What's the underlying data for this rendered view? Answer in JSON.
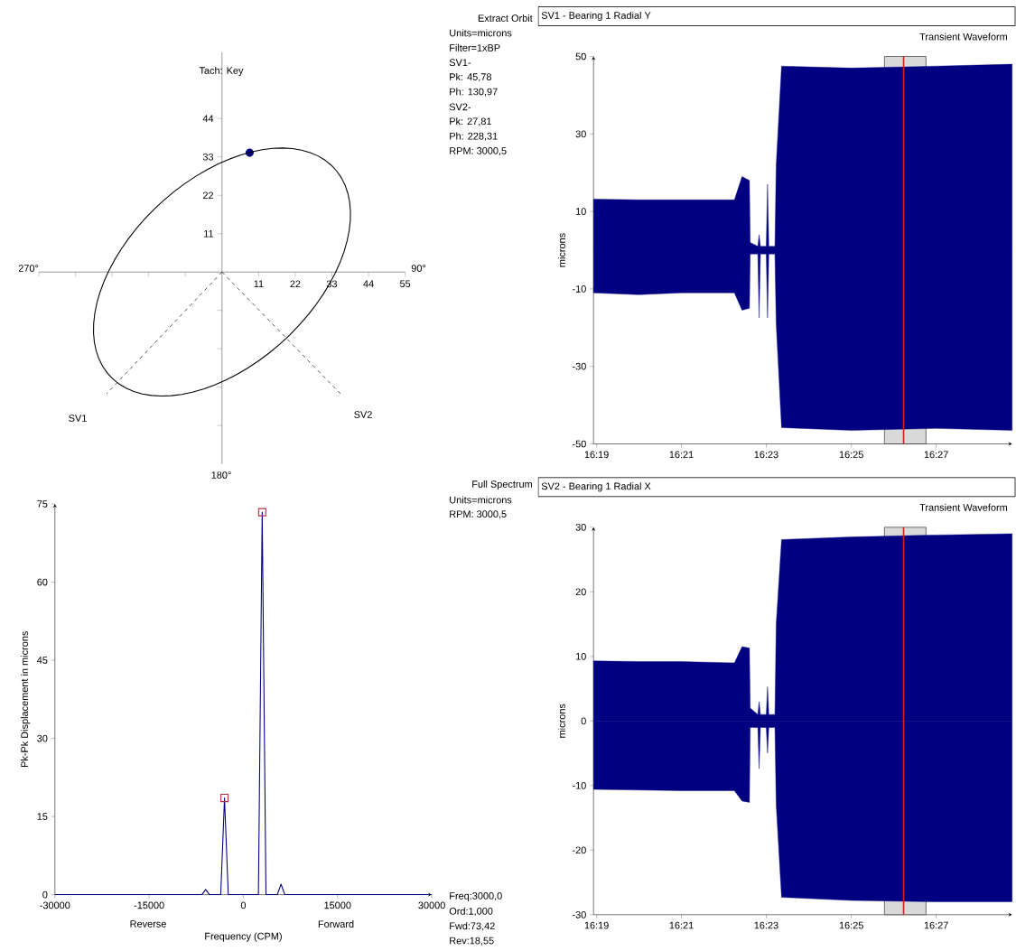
{
  "chart_data": [
    {
      "type": "scatter",
      "xlim": [
        -55,
        55
      ],
      "ylim": [
        -55,
        63
      ],
      "xticks": [
        {
          "value": -55,
          "label": null
        },
        {
          "value": -44,
          "label": null
        },
        {
          "value": -33,
          "label": null
        },
        {
          "value": -22,
          "label": null
        },
        {
          "value": -11,
          "label": null
        },
        11,
        22,
        33,
        44,
        55
      ],
      "yticks": [
        {
          "value": -44,
          "label": null
        },
        {
          "value": -33,
          "label": null
        },
        {
          "value": -22,
          "label": null
        },
        {
          "value": -11,
          "label": null
        },
        11,
        22,
        33,
        44
      ],
      "series": [
        {
          "marker": "circle",
          "color": "#000080",
          "x": [
            8.3
          ],
          "values": [
            34.2
          ]
        }
      ],
      "annotations": [
        "Extract Orbit",
        "Units=microns",
        "Filter=1xBP",
        "SV1-",
        "Pk: 45,78",
        "Ph: 130,97",
        "SV2-",
        "Pk: 27,81",
        "Ph: 228,31",
        "RPM: 3000,5",
        "Tach: Key",
        "270°",
        "90°",
        "180°",
        "SV1",
        "SV2"
      ]
    },
    {
      "type": "area",
      "title": "SV1 - Bearing 1 Radial Y",
      "subtitle": "Transient Waveform",
      "ylabel": "microns",
      "xlim": [
        16.3155,
        16.4798
      ],
      "ylim": [
        -50,
        50
      ],
      "xticks": [
        {
          "value": 16.3167,
          "label": "16:19"
        },
        {
          "value": 16.35,
          "label": "16:21"
        },
        {
          "value": 16.3833,
          "label": "16:23"
        },
        {
          "value": 16.4167,
          "label": "16:25"
        },
        {
          "value": 16.45,
          "label": "16:27"
        }
      ],
      "yticks": [
        -50,
        -30,
        -10,
        10,
        30,
        50
      ],
      "x": [
        16.3155,
        16.3333,
        16.35,
        16.3708,
        16.3738,
        16.3767,
        16.377,
        16.38,
        16.3805,
        16.381,
        16.3833,
        16.3838,
        16.3843,
        16.3867,
        16.3872,
        16.3893,
        16.4167,
        16.45,
        16.4798
      ],
      "series": [
        {
          "color": "#000080",
          "values": [
            13.2,
            13,
            13,
            13,
            19,
            18,
            2,
            1,
            4,
            1,
            1,
            17,
            1,
            1,
            22,
            47.5,
            47,
            47.5,
            48
          ]
        },
        {
          "color": "#000080",
          "values": [
            -11,
            -11.5,
            -11,
            -11,
            -15.5,
            -15,
            -1,
            -1,
            -17.5,
            -1,
            -1,
            -17.5,
            -1,
            -1,
            -19,
            -45.8,
            -46.5,
            -46,
            -46.5
          ]
        }
      ],
      "bands": [
        {
          "axis": "x",
          "from": 16.4297,
          "to": 16.446,
          "color": "#d9d9d9"
        }
      ],
      "ref_lines": [
        {
          "axis": "x",
          "value": 16.4372,
          "color": "#d02020"
        }
      ]
    },
    {
      "type": "line",
      "xlabel": "Frequency (CPM)",
      "ylabel": "Pk-Pk Displacement in microns",
      "xlim": [
        -30000,
        30000
      ],
      "ylim": [
        0,
        75
      ],
      "xticks": [
        -30000,
        -15000,
        0,
        15000,
        30000
      ],
      "yticks": [
        0,
        15,
        30,
        45,
        60,
        75
      ],
      "series": [
        {
          "color": "#000080",
          "x": [
            -30000,
            -6600,
            -6000,
            -5400,
            -3600,
            -3000,
            -2400,
            2400,
            3000,
            3600,
            5400,
            6000,
            6600,
            30000
          ],
          "values": [
            0,
            0,
            1,
            0,
            0,
            18.55,
            0,
            0,
            73.42,
            0,
            0,
            2,
            0,
            0
          ]
        },
        {
          "type": "scatter",
          "marker": "square",
          "color": "#b03040",
          "x": [
            -3000,
            3000
          ],
          "values": [
            18.55,
            73.42
          ]
        }
      ],
      "annotations": [
        "Full Spectrum",
        "Units=microns",
        "RPM: 3000,5",
        "Freq:3000,0",
        "Ord:1,000",
        "Fwd:73,42",
        "Rev:18,55",
        "Reverse",
        "Forward"
      ]
    },
    {
      "type": "area",
      "title": "SV2 - Bearing 1 Radial X",
      "subtitle": "Transient Waveform",
      "ylabel": "microns",
      "xlim": [
        16.3155,
        16.4798
      ],
      "ylim": [
        -30,
        30
      ],
      "xticks": [
        {
          "value": 16.3167,
          "label": "16:19"
        },
        {
          "value": 16.35,
          "label": "16:21"
        },
        {
          "value": 16.3833,
          "label": "16:23"
        },
        {
          "value": 16.4167,
          "label": "16:25"
        },
        {
          "value": 16.45,
          "label": "16:27"
        }
      ],
      "yticks": [
        -30,
        -20,
        -10,
        0,
        10,
        20,
        30
      ],
      "x": [
        16.3155,
        16.3333,
        16.35,
        16.3708,
        16.3738,
        16.3767,
        16.377,
        16.38,
        16.3805,
        16.381,
        16.3833,
        16.3838,
        16.3843,
        16.3867,
        16.3872,
        16.3893,
        16.4167,
        16.45,
        16.4798
      ],
      "series": [
        {
          "color": "#000080",
          "values": [
            9.3,
            9.2,
            9.2,
            9.0,
            11.5,
            11.3,
            2,
            1,
            3,
            1,
            1,
            5.3,
            1,
            1,
            15,
            28.1,
            28.5,
            28.8,
            29
          ]
        },
        {
          "color": "#000080",
          "values": [
            -10.6,
            -10.7,
            -10.8,
            -10.8,
            -12.4,
            -12.6,
            -1,
            -1,
            -7.4,
            -1,
            -1,
            -5,
            -1,
            -1,
            -13,
            -27.3,
            -27.8,
            -28,
            -28
          ]
        }
      ],
      "bands": [
        {
          "axis": "x",
          "from": 16.4297,
          "to": 16.446,
          "color": "#d9d9d9"
        }
      ],
      "ref_lines": [
        {
          "axis": "x",
          "value": 16.4372,
          "color": "#d02020"
        }
      ]
    }
  ]
}
